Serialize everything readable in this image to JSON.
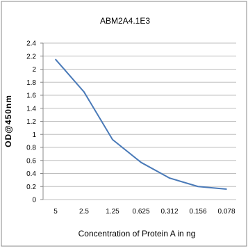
{
  "chart_data": {
    "type": "line",
    "title": "ABM2A4.1E3",
    "xlabel": "Concentration of Protein A in ng",
    "ylabel": "OD@450nm",
    "categories": [
      "5",
      "2.5",
      "1.25",
      "0.625",
      "0.312",
      "0.156",
      "0.078"
    ],
    "series": [
      {
        "values": [
          2.15,
          1.65,
          0.92,
          0.57,
          0.33,
          0.2,
          0.16
        ]
      }
    ],
    "ylim": [
      0,
      2.4
    ],
    "yticks": [
      "0",
      "0.2",
      "0.4",
      "0.6",
      "0.8",
      "1",
      "1.2",
      "1.4",
      "1.6",
      "1.8",
      "2",
      "2.2",
      "2.4"
    ],
    "grid": true,
    "legend": "none",
    "colors": {
      "line": "#4a7ab8",
      "grid": "#bfbfbf",
      "frame": "#888888"
    }
  }
}
